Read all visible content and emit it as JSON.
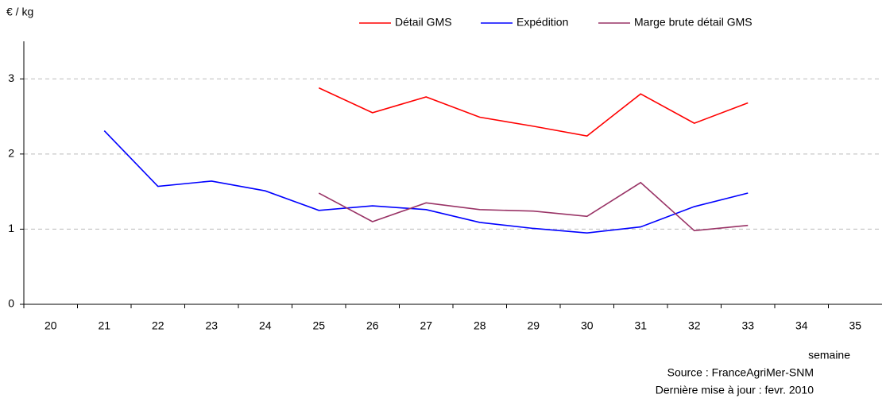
{
  "chart_data": {
    "type": "line",
    "y_label": "€ / kg",
    "x_label": "semaine",
    "source": "Source : FranceAgriMer-SNM",
    "updated": "Dernière mise à jour : fevr. 2010",
    "categories": [
      "20",
      "21",
      "22",
      "23",
      "24",
      "25",
      "26",
      "27",
      "28",
      "29",
      "30",
      "31",
      "32",
      "33",
      "34",
      "35"
    ],
    "series": [
      {
        "name": "Détail GMS",
        "color": "#ff0000",
        "values": [
          null,
          null,
          null,
          null,
          null,
          2.88,
          2.55,
          2.76,
          2.49,
          2.37,
          2.24,
          2.8,
          2.41,
          2.68,
          null,
          null
        ]
      },
      {
        "name": "Expédition",
        "color": "#0000ff",
        "values": [
          null,
          2.31,
          1.57,
          1.64,
          1.51,
          1.25,
          1.31,
          1.26,
          1.09,
          1.01,
          0.95,
          1.03,
          1.3,
          1.48,
          null,
          null
        ]
      },
      {
        "name": "Marge brute détail GMS",
        "color": "#993366",
        "values": [
          null,
          null,
          null,
          null,
          null,
          1.48,
          1.1,
          1.35,
          1.26,
          1.24,
          1.17,
          1.62,
          0.98,
          1.05,
          null,
          null
        ]
      }
    ],
    "ylim": [
      0,
      3.5
    ],
    "yticks": [
      0,
      1,
      2,
      3
    ],
    "grid": true
  }
}
